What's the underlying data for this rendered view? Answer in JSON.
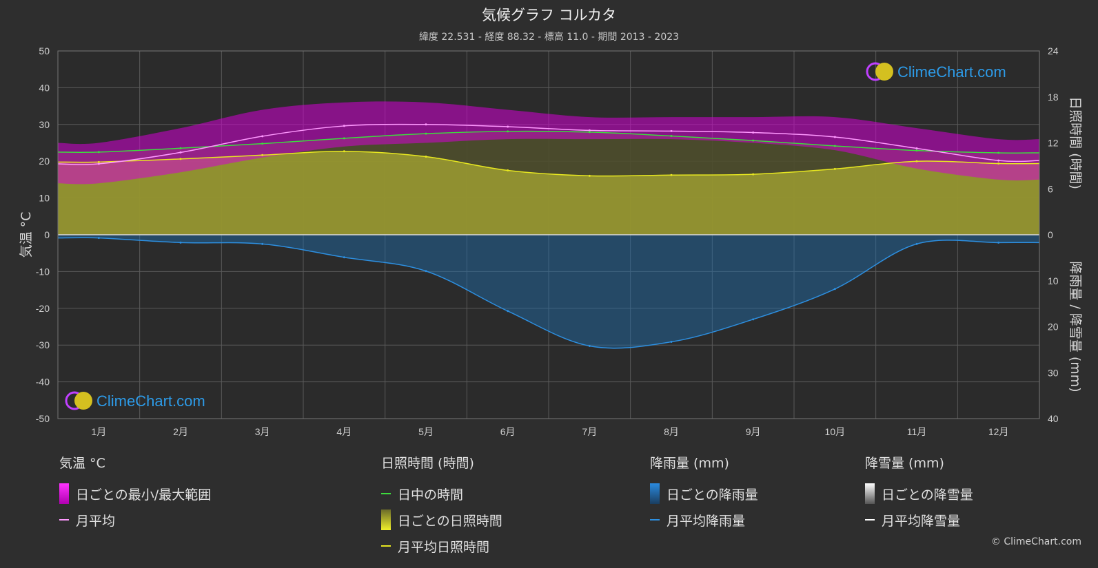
{
  "title": "気候グラフ コルカタ",
  "subtitle": "緯度 22.531 - 経度 88.32 - 標高 11.0 - 期間 2013 - 2023",
  "watermark": "ClimeChart.com",
  "copyright": "© ClimeChart.com",
  "colors": {
    "background": "#2e2e2e",
    "grid": "#5a5a5a",
    "temp_range": "#d400d4",
    "temp_avg": "#ff99ff",
    "daylight": "#3ddc3d",
    "sunshine_fill": "#a8a832",
    "sunshine_avg": "#e8e820",
    "rain_fill": "#1f6fb0",
    "rain_avg": "#2d8fe0",
    "snow_avg": "#ffffff"
  },
  "chart_data": {
    "type": "line",
    "months": [
      "1月",
      "2月",
      "3月",
      "4月",
      "5月",
      "6月",
      "7月",
      "8月",
      "9月",
      "10月",
      "11月",
      "12月"
    ],
    "left_axis": {
      "label": "気温 °C",
      "ticks": [
        "50",
        "40",
        "30",
        "20",
        "10",
        "0",
        "-10",
        "-20",
        "-30",
        "-40",
        "-50"
      ],
      "ylim": [
        -50,
        50
      ]
    },
    "right_axis_top": {
      "label": "日照時間 (時間)",
      "ticks": [
        "24",
        "18",
        "12",
        "6",
        "0"
      ],
      "ylim": [
        0,
        24
      ]
    },
    "right_axis_bottom": {
      "label": "降雨量 / 降雪量 (mm)",
      "ticks": [
        "0",
        "10",
        "20",
        "30",
        "40"
      ],
      "ylim": [
        0,
        40
      ]
    },
    "series": [
      {
        "name": "月平均",
        "group": "気温 °C",
        "unit": "°C",
        "values": [
          19.3,
          22.4,
          26.8,
          29.6,
          30.0,
          29.4,
          28.4,
          28.2,
          27.8,
          26.6,
          23.5,
          20.2
        ]
      },
      {
        "name": "日中の時間",
        "group": "日照時間 (時間)",
        "unit": "h",
        "values": [
          10.8,
          11.3,
          11.9,
          12.6,
          13.2,
          13.5,
          13.4,
          12.9,
          12.3,
          11.6,
          11.0,
          10.7
        ]
      },
      {
        "name": "月平均日照時間",
        "group": "日照時間 (時間)",
        "unit": "h",
        "values": [
          9.5,
          9.9,
          10.4,
          10.9,
          10.2,
          8.4,
          7.7,
          7.8,
          7.9,
          8.6,
          9.6,
          9.3
        ]
      },
      {
        "name": "月平均降雨量",
        "group": "降雨量 (mm)",
        "unit": "mm",
        "values": [
          0.7,
          1.7,
          2.0,
          4.9,
          7.9,
          16.6,
          24.2,
          23.3,
          18.4,
          11.8,
          2.0,
          1.7
        ]
      },
      {
        "name": "月平均降雪量",
        "group": "降雪量 (mm)",
        "unit": "mm",
        "values": [
          0,
          0,
          0,
          0,
          0,
          0,
          0,
          0,
          0,
          0,
          0,
          0
        ]
      }
    ],
    "daily_temp_range": {
      "name": "日ごとの最小/最大範囲",
      "min": [
        14,
        17,
        21,
        24,
        25,
        26,
        26,
        26,
        25,
        23,
        18,
        15
      ],
      "max": [
        25,
        29,
        34,
        36,
        36,
        34,
        32,
        32,
        32,
        32,
        29,
        26
      ]
    }
  },
  "legend": {
    "temp": {
      "header": "気温 °C",
      "range": "日ごとの最小/最大範囲",
      "avg": "月平均"
    },
    "sun": {
      "header": "日照時間 (時間)",
      "daylight": "日中の時間",
      "daily": "日ごとの日照時間",
      "avg": "月平均日照時間"
    },
    "rain": {
      "header": "降雨量 (mm)",
      "daily": "日ごとの降雨量",
      "avg": "月平均降雨量"
    },
    "snow": {
      "header": "降雪量 (mm)",
      "daily": "日ごとの降雪量",
      "avg": "月平均降雪量"
    }
  }
}
